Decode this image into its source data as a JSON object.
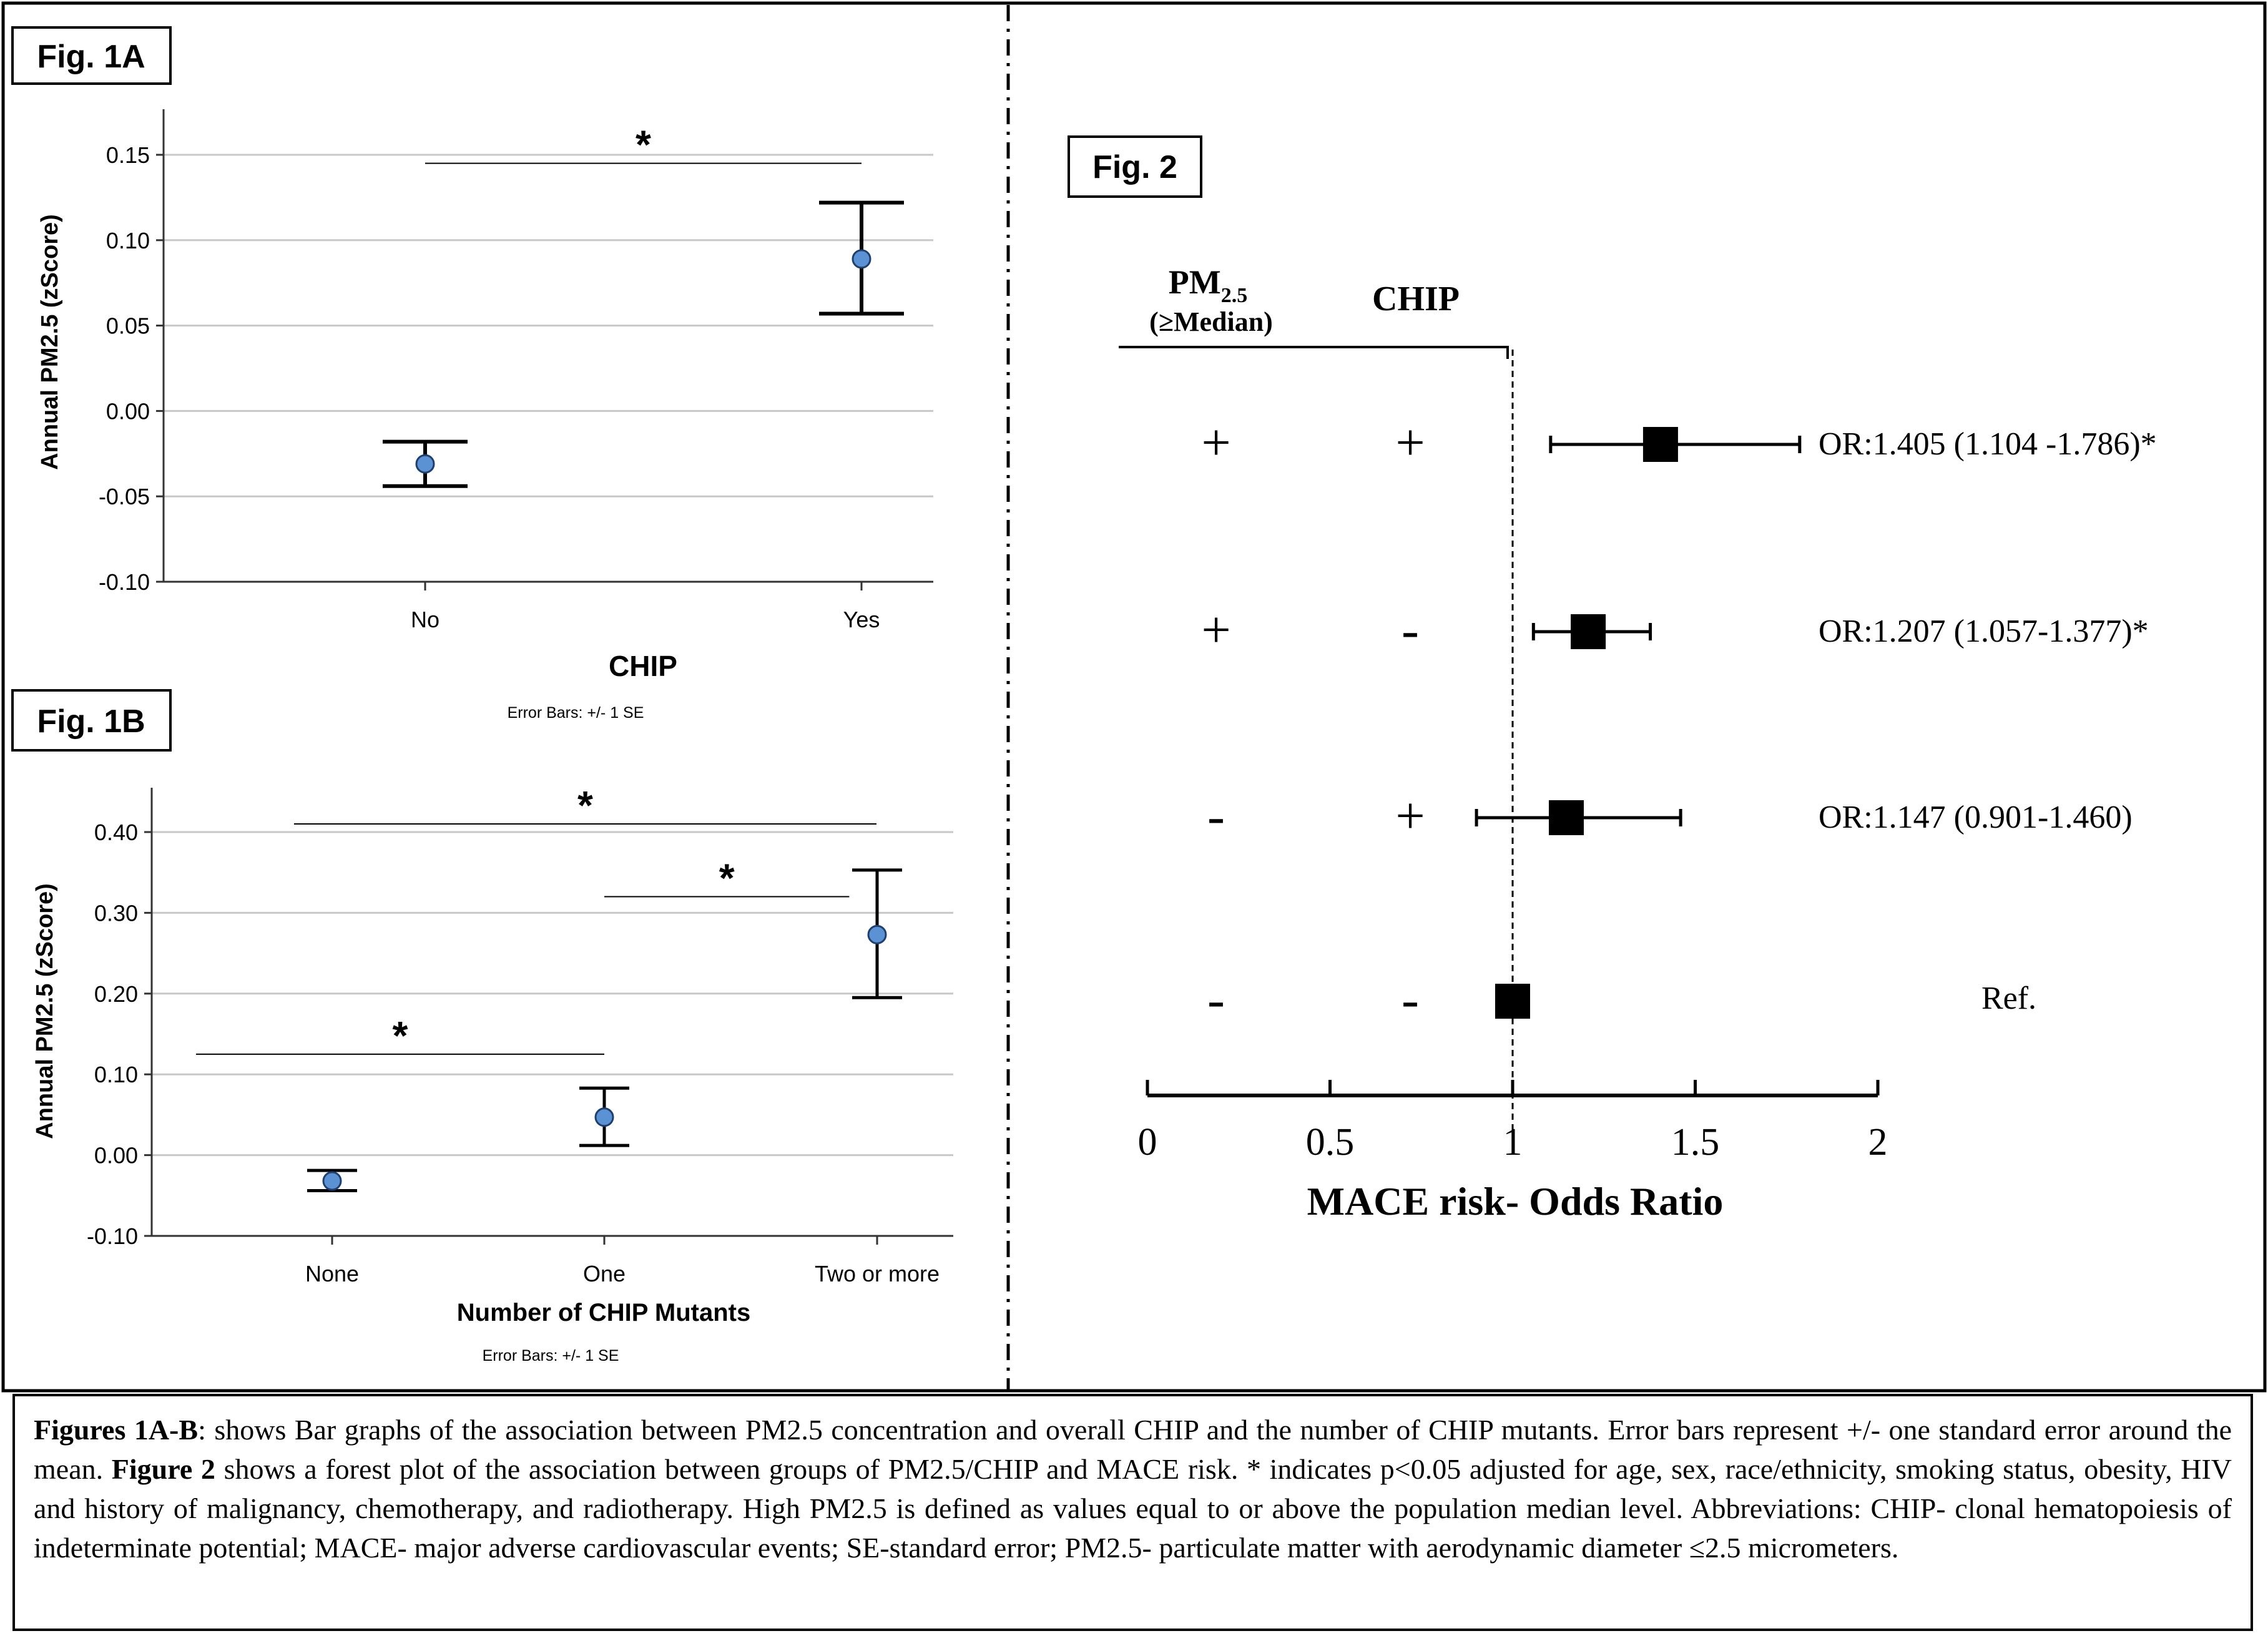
{
  "fig1a": {
    "label": "Fig. 1A",
    "chart_data": {
      "type": "scatter",
      "title": "",
      "xlabel": "CHIP",
      "ylabel": "Annual PM2.5 (zScore)",
      "categories": [
        "No",
        "Yes"
      ],
      "means": [
        -0.031,
        0.089
      ],
      "se_low": [
        -0.044,
        0.057
      ],
      "se_high": [
        -0.018,
        0.122
      ],
      "ylim": [
        -0.1,
        0.175
      ],
      "yticks": [
        "0.15",
        "0.10",
        "0.05",
        "0.00",
        "-0.05",
        "-0.10"
      ],
      "ytick_values": [
        0.15,
        0.1,
        0.05,
        0.0,
        -0.05,
        -0.1
      ],
      "significance": [
        {
          "from": 0,
          "to": 1,
          "level": 0.145,
          "label": "*"
        }
      ],
      "note": "Error Bars: +/- 1 SE"
    }
  },
  "fig1b": {
    "label": "Fig. 1B",
    "chart_data": {
      "type": "scatter",
      "title": "",
      "xlabel": "Number of CHIP Mutants",
      "ylabel": "Annual PM2.5 (zScore)",
      "categories": [
        "None",
        "One",
        "Two or more"
      ],
      "means": [
        -0.032,
        0.047,
        0.273
      ],
      "se_low": [
        -0.044,
        0.012,
        0.195
      ],
      "se_high": [
        -0.019,
        0.083,
        0.353
      ],
      "ylim": [
        -0.1,
        0.45
      ],
      "yticks": [
        "0.40",
        "0.30",
        "0.20",
        "0.10",
        "0.00",
        "-0.10"
      ],
      "ytick_values": [
        0.4,
        0.3,
        0.2,
        0.1,
        0.0,
        -0.1
      ],
      "significance": [
        {
          "from": -0.5,
          "to": 1,
          "level": 0.125,
          "label": "*"
        },
        {
          "from": 1,
          "to": 1.9,
          "level": 0.32,
          "label": "*"
        },
        {
          "from": -0.14,
          "to": 2,
          "level": 0.41,
          "label": "*"
        }
      ],
      "note": "Error Bars: +/- 1 SE"
    }
  },
  "fig2": {
    "label": "Fig. 2",
    "col_pm_main": "PM",
    "col_pm_sub": "2.5",
    "col_pm_note": "(≥Median)",
    "col_chip": "CHIP",
    "chart_data": {
      "type": "forest",
      "xlabel": "MACE risk- Odds Ratio",
      "xlim": [
        0,
        2
      ],
      "xticks": [
        "0",
        "0.5",
        "1",
        "1.5",
        "2"
      ],
      "xtick_values": [
        0,
        0.5,
        1,
        1.5,
        2
      ],
      "reference": 1,
      "rows": [
        {
          "pm": "+",
          "chip": "+",
          "or": 1.405,
          "low": 1.104,
          "high": 1.786,
          "label": "OR:1.405 (1.104 -1.786)*"
        },
        {
          "pm": "+",
          "chip": "-",
          "or": 1.207,
          "low": 1.057,
          "high": 1.377,
          "label": "OR:1.207 (1.057-1.377)*"
        },
        {
          "pm": "-",
          "chip": "+",
          "or": 1.147,
          "low": 0.901,
          "high": 1.46,
          "label": "OR:1.147 (0.901-1.460)"
        },
        {
          "pm": "-",
          "chip": "-",
          "or": 1.0,
          "low": null,
          "high": null,
          "label": "Ref."
        }
      ]
    }
  },
  "caption": {
    "fig1_bold": "Figures 1A-B",
    "fig1_text": ": shows Bar graphs of the association between PM2.5 concentration and overall CHIP and the number of CHIP mutants. Error bars represent +/- one standard error around the mean. ",
    "fig2_bold": "Figure 2",
    "fig2_text": " shows a forest plot of the association between groups of PM2.5/CHIP and MACE risk. * indicates p<0.05 adjusted for age, sex, race/ethnicity, smoking status, obesity, HIV and history of malignancy, chemotherapy, and radiotherapy. High PM2.5 is defined as values equal to or above the population median level. Abbreviations: CHIP- clonal hematopoiesis of indeterminate potential; MACE- major adverse cardiovascular events; SE-standard error; PM2.5- particulate matter with aerodynamic diameter ≤2.5 micrometers."
  }
}
